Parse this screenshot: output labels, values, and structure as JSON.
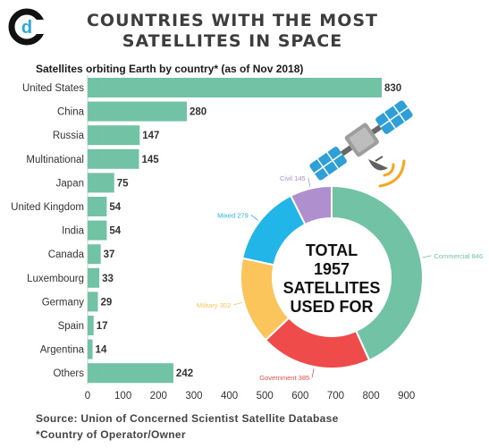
{
  "header": {
    "title_line1": "COUNTRIES WITH THE MOST",
    "title_line2": "SATELLITES IN SPACE",
    "logo_letter": "d"
  },
  "colors": {
    "bar": "#72c3a6",
    "civil": "#b08fcf",
    "commercial": "#72c3a6",
    "government": "#ef4b4b",
    "military": "#fcc55c",
    "mixed": "#22b5e8"
  },
  "chart_data": [
    {
      "type": "bar",
      "orientation": "horizontal",
      "title": "Satellites orbiting Earth by country* (as of Nov 2018)",
      "categories": [
        "United States",
        "China",
        "Russia",
        "Multinational",
        "Japan",
        "United Kingdom",
        "India",
        "Canada",
        "Luxembourg",
        "Germany",
        "Spain",
        "Argentina",
        "Others"
      ],
      "values": [
        830,
        280,
        147,
        145,
        75,
        54,
        54,
        37,
        33,
        29,
        17,
        14,
        242
      ],
      "xlim": [
        0,
        900
      ],
      "xticks": [
        0,
        100,
        200,
        300,
        400,
        500,
        600,
        700,
        800,
        900
      ],
      "grid": false
    },
    {
      "type": "pie",
      "style": "donut",
      "center_text": [
        "TOTAL",
        "1957",
        "SATELLITES",
        "USED FOR"
      ],
      "slices": [
        {
          "label": "Commercial",
          "value": 846
        },
        {
          "label": "Government",
          "value": 385
        },
        {
          "label": "Military",
          "value": 302
        },
        {
          "label": "Mixed",
          "value": 279
        },
        {
          "label": "Civil",
          "value": 145
        }
      ]
    }
  ],
  "source": "Source: Union of Concerned Scientist Satellite Database",
  "footnote": "*Country of Operator/Owner"
}
